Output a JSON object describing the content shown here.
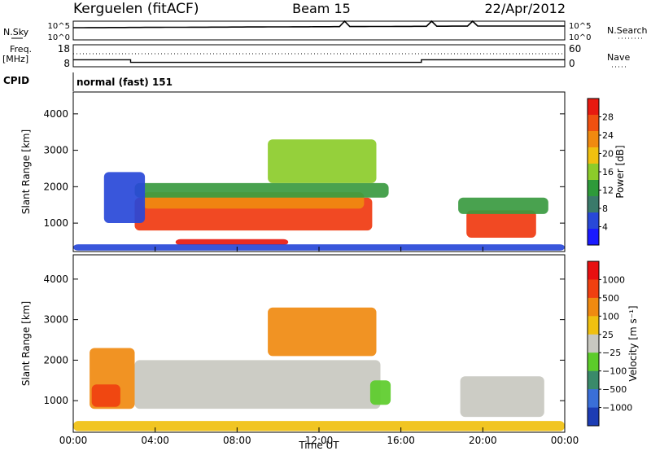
{
  "header": {
    "station": "Kerguelen (fitACF)",
    "beam": "Beam 15",
    "date": "22/Apr/2012",
    "cpid_label": "CPID",
    "cpid_value": "normal (fast) 151"
  },
  "nsky_panel": {
    "left_label": "N.Sky",
    "right_label": "N.Search",
    "ticks_left": [
      "10^5",
      "10^0"
    ],
    "ticks_right": [
      "10^5",
      "10^0"
    ],
    "spikes_x_hours": [
      13.2,
      17.6,
      19.6
    ]
  },
  "freq_panel": {
    "left_label_1": "Freq.",
    "left_label_2": "[MHz]",
    "right_label": "Nave",
    "ticks_left": [
      "18",
      "8"
    ],
    "ticks_right": [
      "60",
      "0"
    ],
    "freq_steps": [
      {
        "from": 0.0,
        "to": 2.8,
        "value": 11.2
      },
      {
        "from": 2.8,
        "to": 17.0,
        "value": 10.0
      },
      {
        "from": 17.0,
        "to": 24.0,
        "value": 11.2
      }
    ],
    "freq_range": [
      8,
      18
    ]
  },
  "chart_data": [
    {
      "type": "heatmap",
      "name": "power",
      "ylabel": "Slant Range [km]",
      "yticks": [
        "4000",
        "3000",
        "2000",
        "1000"
      ],
      "ylim": [
        220,
        4600
      ],
      "colorbar_label": "Power [dB]",
      "colorbar_ticks": [
        "28",
        "24",
        "20",
        "16",
        "12",
        "8",
        "4"
      ],
      "colorbar_colors": [
        "#1a1aff",
        "#2848d8",
        "#3a7a6a",
        "#2e9a3a",
        "#8ccc2a",
        "#f0c010",
        "#f08a10",
        "#f05010",
        "#e81a10"
      ],
      "regions": [
        {
          "t0": 3.0,
          "t1": 14.6,
          "r0": 800,
          "r1": 1700,
          "color": "#f03a10"
        },
        {
          "t0": 3.4,
          "t1": 14.2,
          "r0": 1400,
          "r1": 1850,
          "color": "#f08a10"
        },
        {
          "t0": 3.0,
          "t1": 15.4,
          "r0": 1700,
          "r1": 2100,
          "color": "#3a9a40"
        },
        {
          "t0": 5.0,
          "t1": 10.5,
          "r0": 400,
          "r1": 560,
          "color": "#e81a10"
        },
        {
          "t0": 9.5,
          "t1": 14.8,
          "r0": 2100,
          "r1": 3300,
          "color": "#8ccc2a"
        },
        {
          "t0": 19.2,
          "t1": 22.6,
          "r0": 600,
          "r1": 1350,
          "color": "#f03a10"
        },
        {
          "t0": 18.8,
          "t1": 23.2,
          "r0": 1250,
          "r1": 1700,
          "color": "#3a9a40"
        },
        {
          "t0": 1.5,
          "t1": 3.5,
          "r0": 1000,
          "r1": 2400,
          "color": "#2848d8"
        },
        {
          "t0": 0.0,
          "t1": 24.0,
          "r0": 250,
          "r1": 420,
          "color": "#2848d8"
        }
      ]
    },
    {
      "type": "heatmap",
      "name": "velocity",
      "ylabel": "Slant Range [km]",
      "yticks": [
        "4000",
        "3000",
        "2000",
        "1000"
      ],
      "ylim": [
        220,
        4600
      ],
      "colorbar_label": "Velocity [m s⁻¹]",
      "colorbar_ticks": [
        "1000",
        "500",
        "100",
        "25",
        "−25",
        "−100",
        "−500",
        "−1000"
      ],
      "colorbar_colors": [
        "#1c3cb4",
        "#3a6fd8",
        "#3a8a6a",
        "#5ccc2a",
        "#c8c8c0",
        "#f0c010",
        "#f08a10",
        "#f04010",
        "#e81010"
      ],
      "regions": [
        {
          "t0": 3.0,
          "t1": 15.0,
          "r0": 800,
          "r1": 2000,
          "color": "#c8c8c0"
        },
        {
          "t0": 18.9,
          "t1": 23.0,
          "r0": 600,
          "r1": 1600,
          "color": "#c8c8c0"
        },
        {
          "t0": 0.8,
          "t1": 3.0,
          "r0": 800,
          "r1": 2300,
          "color": "#f08a10"
        },
        {
          "t0": 0.9,
          "t1": 2.3,
          "r0": 850,
          "r1": 1400,
          "color": "#f04010"
        },
        {
          "t0": 9.5,
          "t1": 14.8,
          "r0": 2100,
          "r1": 3300,
          "color": "#f08a10"
        },
        {
          "t0": 0.0,
          "t1": 24.0,
          "r0": 250,
          "r1": 500,
          "color": "#f0c010"
        },
        {
          "t0": 14.5,
          "t1": 15.5,
          "r0": 900,
          "r1": 1500,
          "color": "#5ccc2a"
        }
      ]
    }
  ],
  "time_axis": {
    "ticks": [
      "00:00",
      "04:00",
      "08:00",
      "12:00",
      "16:00",
      "20:00",
      "00:00"
    ],
    "label": "Time UT",
    "range_hours": [
      0,
      24
    ]
  }
}
